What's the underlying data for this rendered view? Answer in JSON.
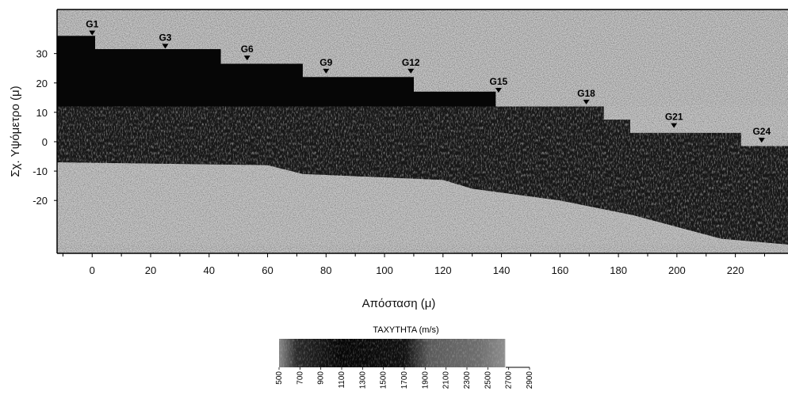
{
  "chart_data": {
    "type": "heatmap",
    "xlabel": "Απόσταση (μ)",
    "ylabel": "Σχ. Υψόμετρο (μ)",
    "xlim": [
      -12,
      238
    ],
    "ylim": [
      -38,
      45
    ],
    "xticks": [
      "0",
      "20",
      "40",
      "60",
      "80",
      "100",
      "120",
      "140",
      "160",
      "180",
      "200",
      "220"
    ],
    "xtick_values": [
      0,
      20,
      40,
      60,
      80,
      100,
      120,
      140,
      160,
      180,
      200,
      220
    ],
    "yticks": [
      "30",
      "20",
      "10",
      "0",
      "-10",
      "-20"
    ],
    "ytick_values": [
      30,
      20,
      10,
      0,
      -10,
      -20
    ],
    "geophones": [
      {
        "label": "G1",
        "x": 0,
        "y": 37
      },
      {
        "label": "G3",
        "x": 25,
        "y": 32.5
      },
      {
        "label": "G6",
        "x": 53,
        "y": 28.5
      },
      {
        "label": "G9",
        "x": 80,
        "y": 24
      },
      {
        "label": "G12",
        "x": 109,
        "y": 24
      },
      {
        "label": "G15",
        "x": 139,
        "y": 17.5
      },
      {
        "label": "G18",
        "x": 169,
        "y": 13.5
      },
      {
        "label": "G21",
        "x": 199,
        "y": 5.5
      },
      {
        "label": "G24",
        "x": 229,
        "y": 0.5
      }
    ],
    "surface_profile": [
      [
        -12,
        36
      ],
      [
        1,
        36
      ],
      [
        1,
        31.5
      ],
      [
        44,
        31.5
      ],
      [
        44,
        26.5
      ],
      [
        72,
        26.5
      ],
      [
        72,
        22
      ],
      [
        110,
        22
      ],
      [
        110,
        17
      ],
      [
        138,
        17
      ],
      [
        138,
        12
      ],
      [
        175,
        12
      ],
      [
        175,
        7.5
      ],
      [
        184,
        7.5
      ],
      [
        184,
        3
      ],
      [
        222,
        3
      ],
      [
        222,
        -1.5
      ],
      [
        238,
        -1.5
      ]
    ],
    "bedrock_profile": [
      [
        -12,
        -7
      ],
      [
        60,
        -8
      ],
      [
        72,
        -11
      ],
      [
        120,
        -13
      ],
      [
        130,
        -16
      ],
      [
        160,
        -20
      ],
      [
        185,
        -25
      ],
      [
        200,
        -29
      ],
      [
        215,
        -33
      ],
      [
        238,
        -35
      ]
    ],
    "colorbar": {
      "title": "ΤΑΧΥΤΗΤΑ (m/s)",
      "ticks": [
        "500",
        "700",
        "900",
        "1100",
        "1300",
        "1500",
        "1700",
        "1900",
        "2100",
        "2300",
        "2500",
        "2700",
        "2900"
      ],
      "tick_values": [
        500,
        700,
        900,
        1100,
        1300,
        1500,
        1700,
        1900,
        2100,
        2300,
        2500,
        2700,
        2900
      ],
      "range": [
        500,
        2900
      ]
    },
    "colors": {
      "top_layer": "#c8c8c8",
      "main_layer": "#060606",
      "lower_layer": "#3a3a3a",
      "background": "#ffffff"
    }
  }
}
